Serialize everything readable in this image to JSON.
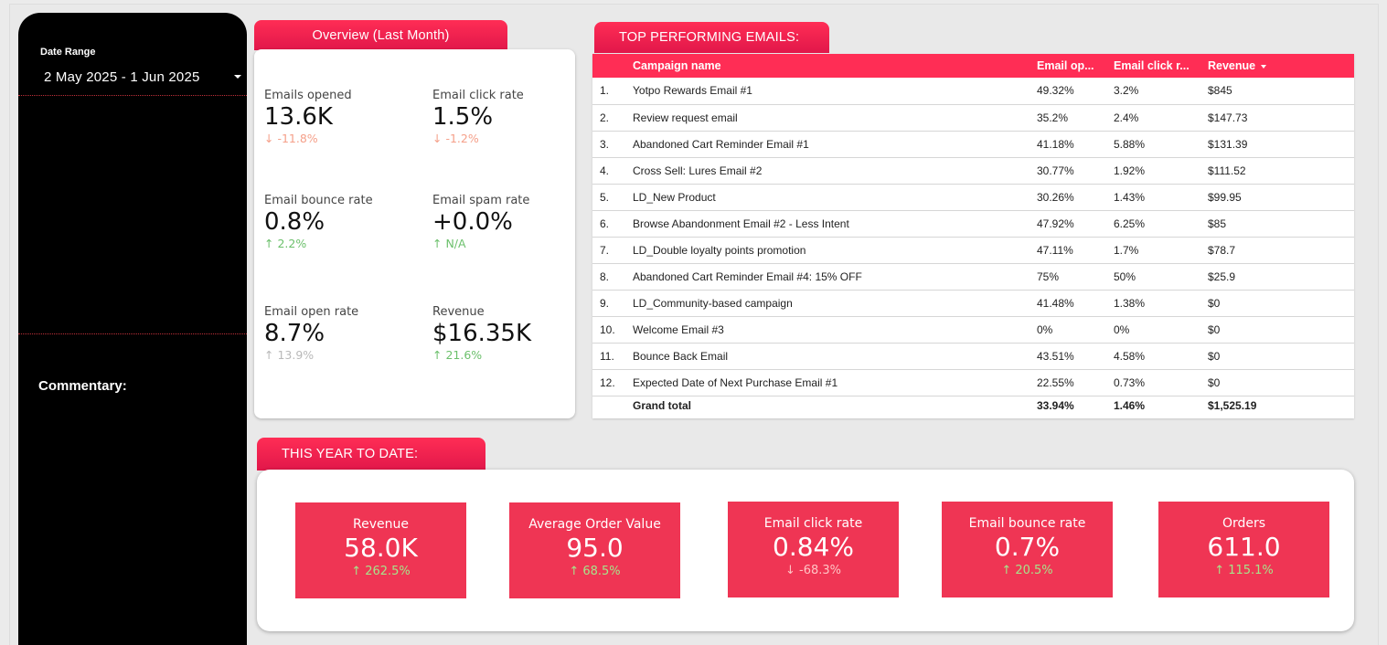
{
  "sidebar": {
    "date_range_label": "Date Range",
    "date_range_value": "2 May 2025 - 1 Jun 2025",
    "commentary_label": "Commentary:"
  },
  "overview": {
    "tab_label": "Overview (Last Month)",
    "kpis": [
      {
        "label": "Emails opened",
        "value": "13.6K",
        "delta": "-11.8%",
        "direction": "down"
      },
      {
        "label": "Email click rate",
        "value": "1.5%",
        "delta": "-1.2%",
        "direction": "down"
      },
      {
        "label": "Email bounce rate",
        "value": "0.8%",
        "delta": "2.2%",
        "direction": "up"
      },
      {
        "label": "Email spam rate",
        "value": "+0.0%",
        "delta": "N/A",
        "direction": "up"
      },
      {
        "label": "Email open rate",
        "value": "8.7%",
        "delta": "13.9%",
        "direction": "up-muted"
      },
      {
        "label": "Revenue",
        "value": "$16.35K",
        "delta": "21.6%",
        "direction": "up"
      }
    ]
  },
  "top_emails": {
    "tab_label": "TOP PERFORMING EMAILS:",
    "columns": [
      "Campaign name",
      "Email op...",
      "Email click r...",
      "Revenue"
    ],
    "rows": [
      {
        "num": "1.",
        "name": "Yotpo Rewards Email #1",
        "open": "49.32%",
        "click": "3.2%",
        "revenue": "$845"
      },
      {
        "num": "2.",
        "name": "Review request email",
        "open": "35.2%",
        "click": "2.4%",
        "revenue": "$147.73"
      },
      {
        "num": "3.",
        "name": "Abandoned Cart Reminder Email #1",
        "open": "41.18%",
        "click": "5.88%",
        "revenue": "$131.39"
      },
      {
        "num": "4.",
        "name": "Cross Sell: Lures Email #2",
        "open": "30.77%",
        "click": "1.92%",
        "revenue": "$111.52"
      },
      {
        "num": "5.",
        "name": "LD_New Product",
        "open": "30.26%",
        "click": "1.43%",
        "revenue": "$99.95"
      },
      {
        "num": "6.",
        "name": "Browse Abandonment Email #2 - Less Intent",
        "open": "47.92%",
        "click": "6.25%",
        "revenue": "$85"
      },
      {
        "num": "7.",
        "name": "LD_Double loyalty points promotion",
        "open": "47.11%",
        "click": "1.7%",
        "revenue": "$78.7"
      },
      {
        "num": "8.",
        "name": "Abandoned Cart Reminder Email #4: 15% OFF",
        "open": "75%",
        "click": "50%",
        "revenue": "$25.9"
      },
      {
        "num": "9.",
        "name": "LD_Community-based campaign",
        "open": "41.48%",
        "click": "1.38%",
        "revenue": "$0"
      },
      {
        "num": "10.",
        "name": "Welcome Email #3",
        "open": "0%",
        "click": "0%",
        "revenue": "$0"
      },
      {
        "num": "11.",
        "name": "Bounce Back Email",
        "open": "43.51%",
        "click": "4.58%",
        "revenue": "$0"
      },
      {
        "num": "12.",
        "name": "Expected Date of Next Purchase Email #1",
        "open": "22.55%",
        "click": "0.73%",
        "revenue": "$0"
      }
    ],
    "total": {
      "label": "Grand total",
      "open": "33.94%",
      "click": "1.46%",
      "revenue": "$1,525.19"
    }
  },
  "ytd": {
    "tab_label": "THIS YEAR TO DATE:",
    "cards": [
      {
        "label": "Revenue",
        "value": "58.0K",
        "delta": "262.5%",
        "direction": "up"
      },
      {
        "label": "Average Order Value",
        "value": "95.0",
        "delta": "68.5%",
        "direction": "up"
      },
      {
        "label": "Email click rate",
        "value": "0.84%",
        "delta": "-68.3%",
        "direction": "down"
      },
      {
        "label": "Email bounce rate",
        "value": "0.7%",
        "delta": "20.5%",
        "direction": "up"
      },
      {
        "label": "Orders",
        "value": "611.0",
        "delta": "115.1%",
        "direction": "up"
      }
    ]
  },
  "colors": {
    "accent": "#ff2d55",
    "scorecard_bg": "#ef3554",
    "positive": "#6cc06c",
    "negative": "#f5a08a",
    "sidebar_bg": "#000000",
    "page_bg": "#ebebeb"
  }
}
